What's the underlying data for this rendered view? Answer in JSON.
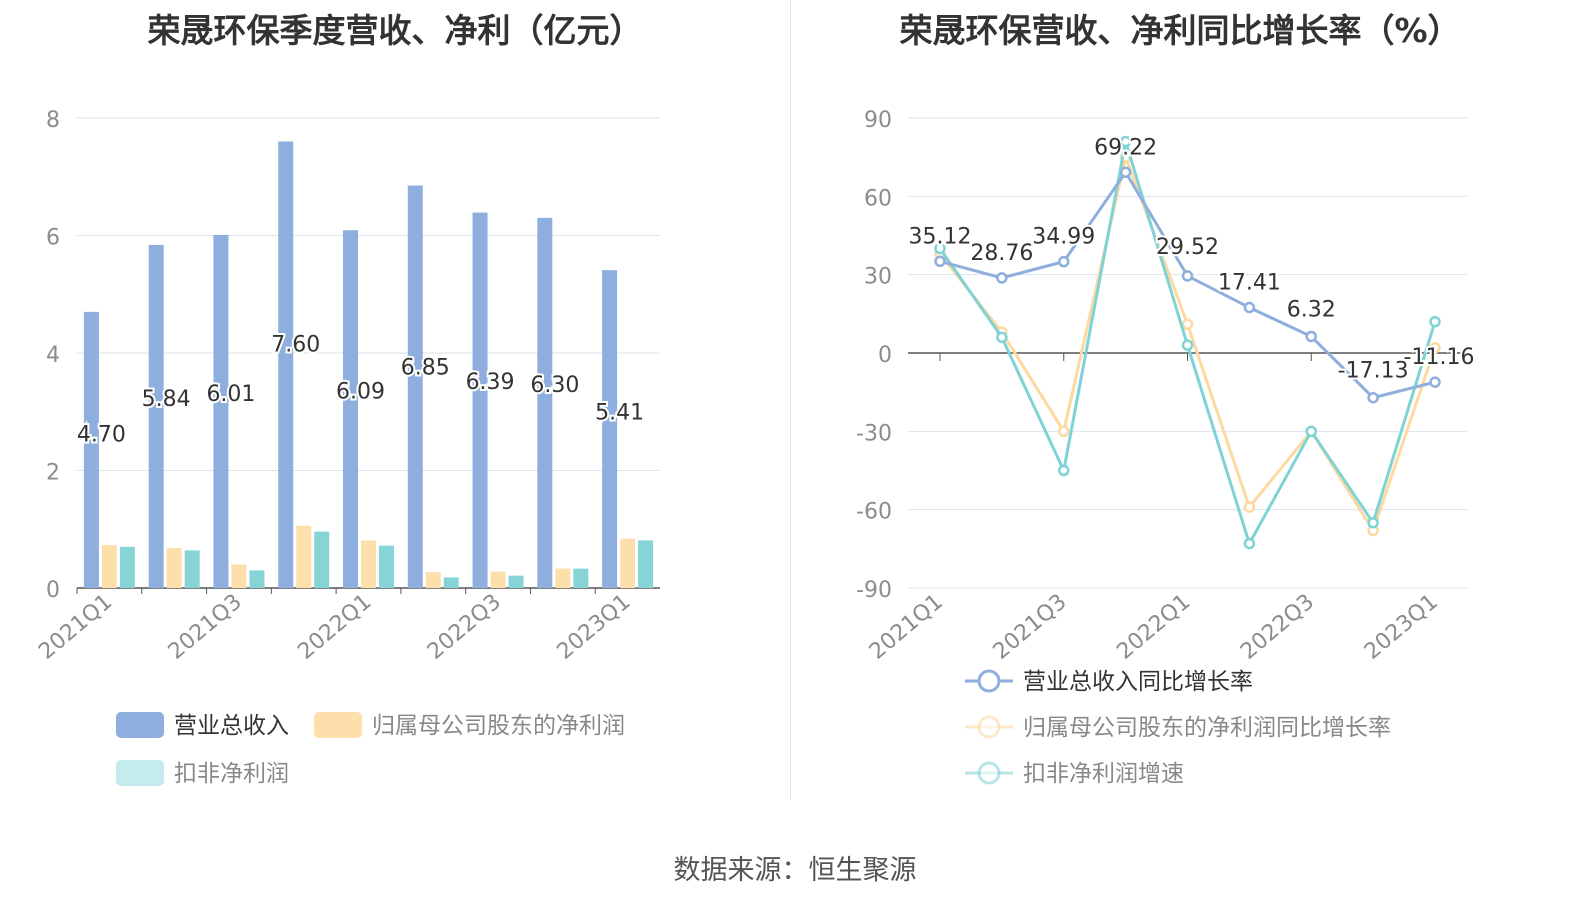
{
  "source": "数据来源：恒生聚源",
  "colors": {
    "revenue": "#8eaedd",
    "net_profit": "#fddfac",
    "deducted_profit": "#86d4d6",
    "revenue_line": "#8eaedd",
    "net_line": "#fdd9a0",
    "deducted_line": "#7fd3d6",
    "grid": "#dde2ef",
    "axis_text": "#8c8c8c"
  },
  "chart_data": [
    {
      "type": "bar",
      "title": "荣晟环保季度营收、净利（亿元）",
      "categories": [
        "2021Q1",
        "2021Q2",
        "2021Q3",
        "2021Q4",
        "2022Q1",
        "2022Q2",
        "2022Q3",
        "2022Q4",
        "2023Q1"
      ],
      "x_tick_labels": [
        "2021Q1",
        "2021Q3",
        "2022Q1",
        "2022Q3",
        "2023Q1"
      ],
      "y_ticks": [
        "0",
        "2",
        "4",
        "6",
        "8"
      ],
      "ylim": [
        0,
        8
      ],
      "series": [
        {
          "name": "营业总收入",
          "values": [
            4.7,
            5.84,
            6.01,
            7.6,
            6.09,
            6.85,
            6.39,
            6.3,
            5.41
          ],
          "labels": [
            "4.70",
            "5.84",
            "6.01",
            "7.60",
            "6.09",
            "6.85",
            "6.39",
            "6.30",
            "5.41"
          ]
        },
        {
          "name": "归属母公司股东的净利润",
          "values": [
            0.73,
            0.68,
            0.4,
            1.06,
            0.81,
            0.27,
            0.28,
            0.33,
            0.84
          ]
        },
        {
          "name": "扣非净利润",
          "values": [
            0.7,
            0.64,
            0.3,
            0.96,
            0.72,
            0.18,
            0.21,
            0.33,
            0.81
          ]
        }
      ],
      "legend": [
        "营业总收入",
        "归属母公司股东的净利润",
        "扣非净利润"
      ]
    },
    {
      "type": "line",
      "title": "荣晟环保营收、净利同比增长率（%）",
      "categories": [
        "2021Q1",
        "2021Q2",
        "2021Q3",
        "2021Q4",
        "2022Q1",
        "2022Q2",
        "2022Q3",
        "2022Q4",
        "2023Q1"
      ],
      "x_tick_labels": [
        "2021Q1",
        "2021Q3",
        "2022Q1",
        "2022Q3",
        "2023Q1"
      ],
      "y_ticks": [
        "90",
        "60",
        "30",
        "0",
        "-30",
        "-60",
        "-90"
      ],
      "ylim": [
        -90,
        90
      ],
      "series": [
        {
          "name": "营业总收入同比增长率",
          "values": [
            35.12,
            28.76,
            34.99,
            69.22,
            29.52,
            17.41,
            6.32,
            -17.13,
            -11.16
          ],
          "labels": [
            "35.12",
            "28.76",
            "34.99",
            "69.22",
            "29.52",
            "17.41",
            "6.32",
            "-17.13",
            "-11.16"
          ]
        },
        {
          "name": "归属母公司股东的净利润同比增长率",
          "values": [
            38,
            8,
            -30,
            75,
            11,
            -59,
            -30,
            -68,
            2
          ]
        },
        {
          "name": "扣非净利润增速",
          "values": [
            40,
            6,
            -45,
            81,
            3,
            -73,
            -30,
            -65,
            12
          ]
        }
      ],
      "legend": [
        "营业总收入同比增长率",
        "归属母公司股东的净利润同比增长率",
        "扣非净利润增速"
      ]
    }
  ]
}
